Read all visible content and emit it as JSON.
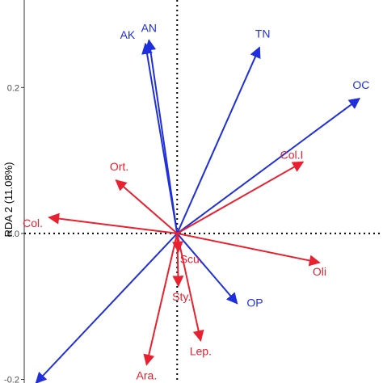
{
  "chart_data": {
    "type": "scatter",
    "title": "",
    "xlabel": "",
    "ylabel": "RDA 2 (11.08%)",
    "yticks": [
      "0.2",
      "0.0",
      "-0.2"
    ],
    "ytick_values": [
      0.2,
      0.0,
      -0.2
    ],
    "xlim": [
      -0.13,
      0.175
    ],
    "ylim": [
      -0.205,
      0.32
    ],
    "reference_lines": {
      "x": 0.0,
      "y": 0.0,
      "style": "dotted"
    },
    "series": [
      {
        "name": "",
        "color": "#1f2fdc",
        "vectors": [
          {
            "label": "AN",
            "x": -0.024,
            "y": 0.265
          },
          {
            "label": "AK",
            "x": -0.027,
            "y": 0.26
          },
          {
            "label": "TN",
            "x": 0.07,
            "y": 0.255
          },
          {
            "label": "OC",
            "x": 0.155,
            "y": 0.185
          },
          {
            "label": "OP",
            "x": 0.051,
            "y": -0.096
          },
          {
            "label": "",
            "x": -0.12,
            "y": -0.205
          }
        ]
      },
      {
        "name": "",
        "color": "#e8202f",
        "vectors": [
          {
            "label": "Col.I",
            "x": 0.107,
            "y": 0.098
          },
          {
            "label": "Ort.",
            "x": -0.052,
            "y": 0.073
          },
          {
            "label": "Col.",
            "x": -0.109,
            "y": 0.022
          },
          {
            "label": "Oli",
            "x": 0.121,
            "y": -0.04
          },
          {
            "label": "Scu.",
            "x": 0.001,
            "y": -0.025
          },
          {
            "label": "Sty.",
            "x": 0.001,
            "y": -0.072
          },
          {
            "label": "Lep.",
            "x": 0.02,
            "y": -0.147
          },
          {
            "label": "Ara.",
            "x": -0.026,
            "y": -0.18
          }
        ]
      }
    ]
  }
}
